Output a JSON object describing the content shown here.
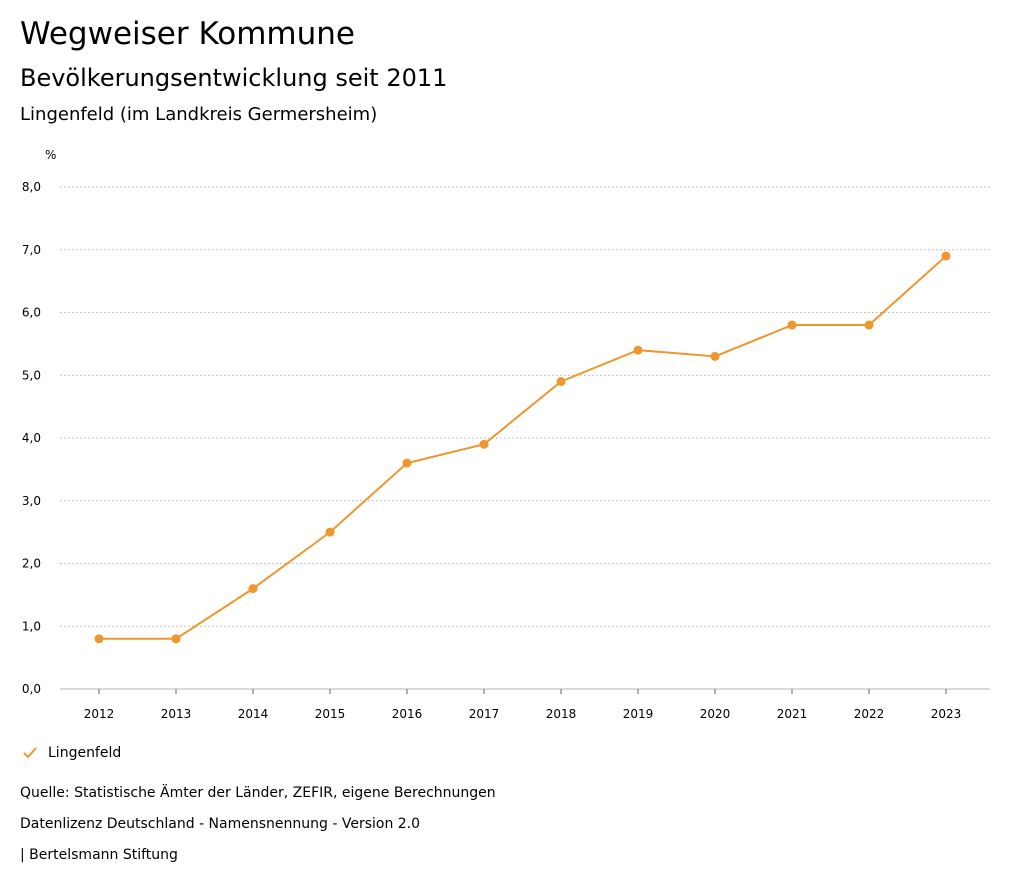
{
  "header": {
    "title": "Wegweiser Kommune",
    "subtitle": "Bevölkerungsentwicklung seit 2011",
    "region": "Lingenfeld (im Landkreis Germersheim)"
  },
  "chart_data": {
    "type": "line",
    "y_unit_label": "%",
    "categories": [
      "2012",
      "2013",
      "2014",
      "2015",
      "2016",
      "2017",
      "2018",
      "2019",
      "2020",
      "2021",
      "2022",
      "2023"
    ],
    "series": [
      {
        "name": "Lingenfeld",
        "values": [
          0.8,
          0.8,
          1.6,
          2.5,
          3.6,
          3.9,
          4.9,
          5.4,
          5.3,
          5.8,
          5.8,
          6.9
        ],
        "color": "#f0962e"
      }
    ],
    "ylim": [
      0,
      8
    ],
    "y_ticks": [
      "0,0",
      "1,0",
      "2,0",
      "3,0",
      "4,0",
      "5,0",
      "6,0",
      "7,0",
      "8,0"
    ],
    "grid": true,
    "legend_position": "bottom-left"
  },
  "footer": {
    "source": "Quelle: Statistische Ämter der Länder, ZEFIR, eigene Berechnungen",
    "license": "Datenlizenz Deutschland - Namensnennung - Version 2.0",
    "publisher": "| Bertelsmann Stiftung"
  },
  "colors": {
    "series": "#f0962e",
    "grid": "#b3b3b3",
    "axis": "#666666"
  }
}
